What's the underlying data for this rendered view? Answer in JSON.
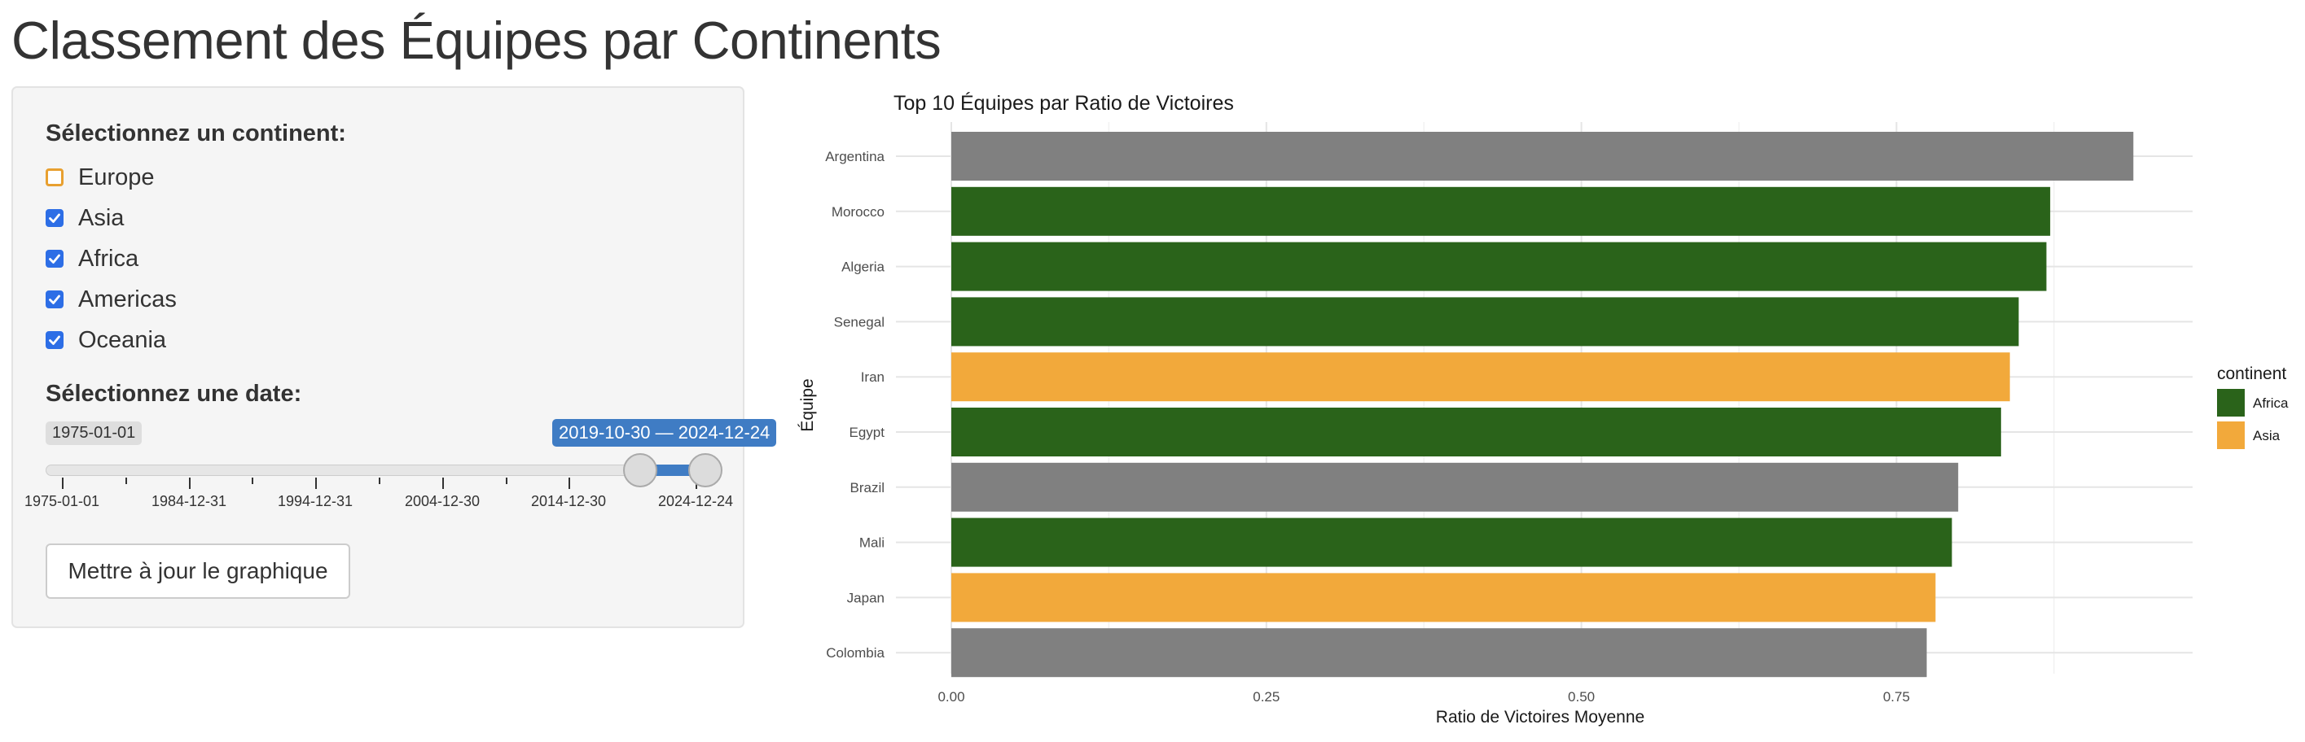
{
  "page": {
    "title": "Classement des Équipes par Continents"
  },
  "sidebar": {
    "continent_label": "Sélectionnez un continent:",
    "continents": [
      {
        "label": "Europe",
        "checked": false
      },
      {
        "label": "Asia",
        "checked": true
      },
      {
        "label": "Africa",
        "checked": true
      },
      {
        "label": "Americas",
        "checked": true
      },
      {
        "label": "Oceania",
        "checked": true
      }
    ],
    "date_label": "Sélectionnez une date:",
    "slider": {
      "min_label": "1975-01-01",
      "range_label": "2019-10-30 — 2024-12-24",
      "from": "2019-10-30",
      "to": "2024-12-24",
      "min": "1975-01-01",
      "max": "2024-12-24",
      "tick_labels": [
        "1975-01-01",
        "1984-12-31",
        "1994-12-31",
        "2004-12-30",
        "2014-12-30",
        "2024-12-24"
      ]
    },
    "update_button_label": "Mettre à jour le graphique"
  },
  "colors": {
    "Africa": "#2a631a",
    "Asia": "#f2a93b",
    "other": "#808080",
    "grid_major": "#e5e5e5",
    "grid_minor": "#f2f2f2",
    "checkbox_checked": "#2d6ee6",
    "checkbox_unchecked_border": "#e8a030",
    "slider_accent": "#3f7cc4"
  },
  "chart_data": {
    "type": "bar",
    "orientation": "horizontal",
    "title": "Top 10 Équipes par Ratio de Victoires",
    "xlabel": "Ratio de Victoires Moyenne",
    "ylabel": "Équipe",
    "xlim": [
      0,
      0.985
    ],
    "x_ticks": [
      0,
      0.25,
      0.5,
      0.75
    ],
    "x_tick_labels": [
      "0.00",
      "0.25",
      "0.50",
      "0.75"
    ],
    "categories": [
      "Argentina",
      "Morocco",
      "Algeria",
      "Senegal",
      "Iran",
      "Egypt",
      "Brazil",
      "Mali",
      "Japan",
      "Colombia"
    ],
    "values": [
      0.938,
      0.872,
      0.869,
      0.847,
      0.84,
      0.833,
      0.799,
      0.794,
      0.781,
      0.774
    ],
    "continent": [
      null,
      "Africa",
      "Africa",
      "Africa",
      "Asia",
      "Africa",
      null,
      "Africa",
      "Asia",
      null
    ],
    "grid": true,
    "legend": {
      "title": "continent",
      "position": "right",
      "entries": [
        "Africa",
        "Asia"
      ]
    }
  }
}
